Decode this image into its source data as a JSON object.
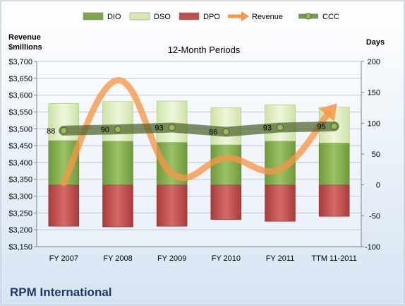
{
  "company": "RPM International",
  "chart_data": {
    "type": "bar",
    "subtitle": "12-Month Periods",
    "left_axis_label": [
      "Revenue",
      "$millions"
    ],
    "right_axis_label": "Days",
    "categories": [
      "FY 2007",
      "FY 2008",
      "FY 2009",
      "FY 2010",
      "FY 2011",
      "TTM 11-2011"
    ],
    "left_ylim": [
      3150,
      3700
    ],
    "left_ticks": [
      "$3,150",
      "$3,200",
      "$3,250",
      "$3,300",
      "$3,350",
      "$3,400",
      "$3,450",
      "$3,500",
      "$3,550",
      "$3,600",
      "$3,650",
      "$3,700"
    ],
    "left_tick_values": [
      3150,
      3200,
      3250,
      3300,
      3350,
      3400,
      3450,
      3500,
      3550,
      3600,
      3650,
      3700
    ],
    "right_ylim": [
      -100,
      200
    ],
    "right_ticks": [
      "-100",
      "-50",
      "0",
      "50",
      "100",
      "150",
      "200"
    ],
    "right_tick_values": [
      -100,
      -50,
      0,
      50,
      100,
      150,
      200
    ],
    "legend": [
      {
        "name": "DIO",
        "kind": "bar",
        "color": "#7fa74c"
      },
      {
        "name": "DSO",
        "kind": "bar",
        "color": "#d7e8b4"
      },
      {
        "name": "DPO",
        "kind": "bar",
        "color": "#c0504d"
      },
      {
        "name": "Revenue",
        "kind": "arrow",
        "color": "#f79646"
      },
      {
        "name": "CCC",
        "kind": "line",
        "color": "#5a7a31"
      }
    ],
    "series": [
      {
        "name": "DIO",
        "axis": "right",
        "values": [
          72,
          71,
          69,
          65,
          71,
          68
        ]
      },
      {
        "name": "DSO",
        "axis": "right",
        "values": [
          60,
          64,
          67,
          60,
          59,
          58
        ]
      },
      {
        "name": "DPO",
        "axis": "right",
        "values": [
          -67,
          -68,
          -67,
          -56,
          -59,
          -51
        ]
      },
      {
        "name": "Revenue",
        "axis": "left",
        "values": [
          3339,
          3644,
          3368,
          3413,
          3380,
          3566
        ]
      },
      {
        "name": "CCC",
        "axis": "right",
        "values": [
          88,
          90,
          93,
          86,
          93,
          95
        ]
      }
    ],
    "ccc_labels": [
      "88",
      "90",
      "93",
      "86",
      "93",
      "95"
    ],
    "grid": "horizontal"
  }
}
